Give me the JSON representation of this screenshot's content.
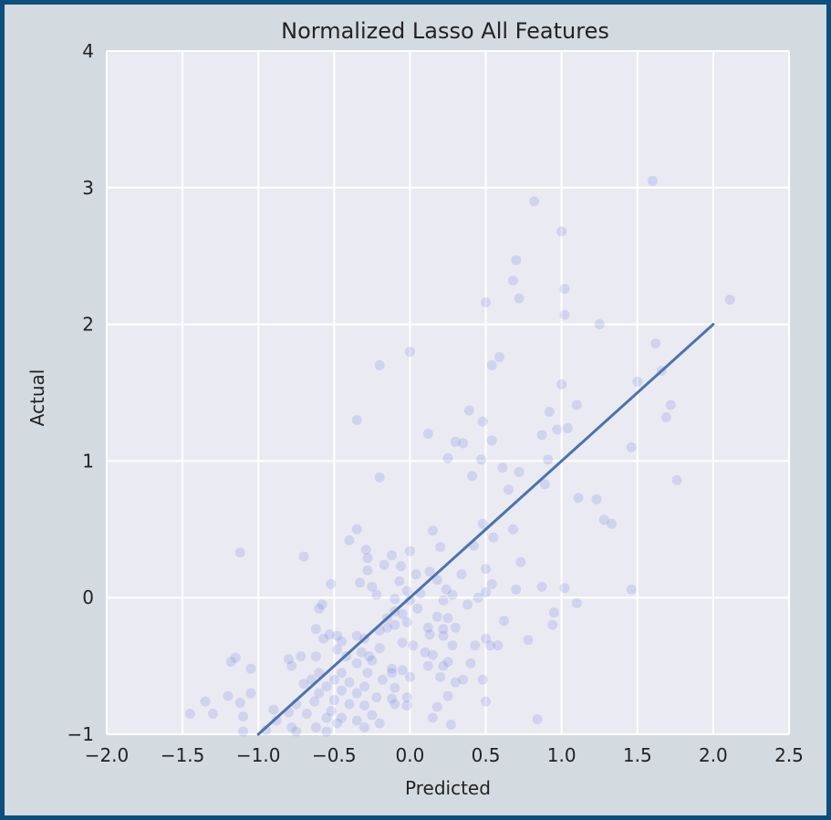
{
  "chart_data": {
    "type": "scatter",
    "title": "Normalized Lasso All Features",
    "xlabel": "Predicted",
    "ylabel": "Actual",
    "xlim": [
      -2.0,
      2.5
    ],
    "ylim": [
      -1,
      4
    ],
    "xticks": [
      "−2.0",
      "−1.5",
      "−1.0",
      "−0.5",
      "0.0",
      "0.5",
      "1.0",
      "1.5",
      "2.0",
      "2.5"
    ],
    "xtick_values": [
      -2.0,
      -1.5,
      -1.0,
      -0.5,
      0.0,
      0.5,
      1.0,
      1.5,
      2.0,
      2.5
    ],
    "yticks": [
      "−1",
      "0",
      "1",
      "2",
      "3",
      "4"
    ],
    "ytick_values": [
      -1,
      0,
      1,
      2,
      3,
      4
    ],
    "grid": true,
    "colors": {
      "background": "#eaeaf2",
      "grid": "#ffffff",
      "points": "#4c5fd6",
      "line": "#4c72b0",
      "frame": "#d4dbe0",
      "border": "#0d4f7c"
    },
    "points": [
      [
        1.6,
        3.05
      ],
      [
        0.82,
        2.9
      ],
      [
        1.0,
        2.68
      ],
      [
        0.7,
        2.47
      ],
      [
        0.68,
        2.32
      ],
      [
        1.02,
        2.26
      ],
      [
        0.72,
        2.19
      ],
      [
        0.5,
        2.16
      ],
      [
        2.11,
        2.18
      ],
      [
        1.02,
        2.07
      ],
      [
        1.25,
        2.0
      ],
      [
        1.62,
        1.86
      ],
      [
        0.0,
        1.8
      ],
      [
        0.59,
        1.76
      ],
      [
        0.54,
        1.7
      ],
      [
        -0.2,
        1.7
      ],
      [
        1.66,
        1.66
      ],
      [
        1.5,
        1.58
      ],
      [
        1.0,
        1.56
      ],
      [
        1.1,
        1.41
      ],
      [
        1.72,
        1.41
      ],
      [
        0.39,
        1.37
      ],
      [
        0.92,
        1.36
      ],
      [
        1.69,
        1.32
      ],
      [
        -0.35,
        1.3
      ],
      [
        0.48,
        1.29
      ],
      [
        0.97,
        1.23
      ],
      [
        1.04,
        1.24
      ],
      [
        0.12,
        1.2
      ],
      [
        0.87,
        1.19
      ],
      [
        0.3,
        1.14
      ],
      [
        0.35,
        1.13
      ],
      [
        0.54,
        1.15
      ],
      [
        1.46,
        1.1
      ],
      [
        0.91,
        1.01
      ],
      [
        0.25,
        1.02
      ],
      [
        0.47,
        1.01
      ],
      [
        0.61,
        0.95
      ],
      [
        0.72,
        0.92
      ],
      [
        0.41,
        0.89
      ],
      [
        -0.2,
        0.88
      ],
      [
        1.76,
        0.86
      ],
      [
        0.89,
        0.83
      ],
      [
        0.65,
        0.79
      ],
      [
        1.11,
        0.73
      ],
      [
        1.23,
        0.72
      ],
      [
        1.28,
        0.57
      ],
      [
        1.33,
        0.54
      ],
      [
        0.48,
        0.54
      ],
      [
        0.68,
        0.5
      ],
      [
        -0.35,
        0.5
      ],
      [
        0.15,
        0.49
      ],
      [
        0.55,
        0.44
      ],
      [
        -0.4,
        0.42
      ],
      [
        0.42,
        0.38
      ],
      [
        0.2,
        0.37
      ],
      [
        -0.29,
        0.35
      ],
      [
        0.0,
        0.34
      ],
      [
        -1.12,
        0.33
      ],
      [
        -0.7,
        0.3
      ],
      [
        -0.28,
        0.29
      ],
      [
        -0.12,
        0.31
      ],
      [
        0.73,
        0.26
      ],
      [
        -0.06,
        0.23
      ],
      [
        -0.17,
        0.24
      ],
      [
        0.5,
        0.21
      ],
      [
        -0.28,
        0.2
      ],
      [
        0.13,
        0.19
      ],
      [
        0.04,
        0.17
      ],
      [
        0.34,
        0.17
      ],
      [
        -0.33,
        0.11
      ],
      [
        -0.07,
        0.12
      ],
      [
        0.18,
        0.13
      ],
      [
        -0.52,
        0.1
      ],
      [
        0.54,
        0.1
      ],
      [
        -0.25,
        0.08
      ],
      [
        0.87,
        0.08
      ],
      [
        1.02,
        0.07
      ],
      [
        1.46,
        0.06
      ],
      [
        0.7,
        0.06
      ],
      [
        0.24,
        0.06
      ],
      [
        -0.02,
        0.05
      ],
      [
        0.07,
        0.03
      ],
      [
        -0.22,
        0.02
      ],
      [
        0.5,
        0.04
      ],
      [
        0.28,
        0.02
      ],
      [
        0.45,
        0.0
      ],
      [
        -0.1,
        -0.01
      ],
      [
        0.0,
        -0.02
      ],
      [
        0.22,
        -0.02
      ],
      [
        0.38,
        -0.05
      ],
      [
        1.1,
        -0.04
      ],
      [
        -0.58,
        -0.05
      ],
      [
        -0.6,
        -0.08
      ],
      [
        0.05,
        -0.08
      ],
      [
        -0.1,
        -0.1
      ],
      [
        0.95,
        -0.11
      ],
      [
        -0.05,
        -0.12
      ],
      [
        0.18,
        -0.14
      ],
      [
        -0.15,
        -0.15
      ],
      [
        0.25,
        -0.15
      ],
      [
        0.62,
        -0.17
      ],
      [
        -0.02,
        -0.18
      ],
      [
        0.94,
        -0.2
      ],
      [
        -0.1,
        -0.2
      ],
      [
        -0.15,
        -0.22
      ],
      [
        0.3,
        -0.22
      ],
      [
        0.22,
        -0.23
      ],
      [
        0.12,
        -0.22
      ],
      [
        -0.62,
        -0.23
      ],
      [
        -0.2,
        -0.24
      ],
      [
        -0.53,
        -0.27
      ],
      [
        -0.35,
        -0.28
      ],
      [
        -0.48,
        -0.28
      ],
      [
        0.13,
        -0.27
      ],
      [
        0.22,
        -0.28
      ],
      [
        -0.3,
        -0.3
      ],
      [
        -0.57,
        -0.3
      ],
      [
        -0.45,
        -0.32
      ],
      [
        0.5,
        -0.3
      ],
      [
        -0.05,
        -0.33
      ],
      [
        0.78,
        -0.31
      ],
      [
        0.02,
        -0.35
      ],
      [
        0.28,
        -0.35
      ],
      [
        0.43,
        -0.35
      ],
      [
        0.53,
        -0.35
      ],
      [
        0.58,
        -0.35
      ],
      [
        -0.2,
        -0.37
      ],
      [
        -0.48,
        -0.38
      ],
      [
        -0.32,
        -0.4
      ],
      [
        0.1,
        -0.4
      ],
      [
        0.15,
        -0.42
      ],
      [
        -0.27,
        -0.43
      ],
      [
        -0.42,
        -0.43
      ],
      [
        -0.62,
        -0.43
      ],
      [
        -0.72,
        -0.43
      ],
      [
        -0.8,
        -0.45
      ],
      [
        -0.25,
        -0.46
      ],
      [
        -1.15,
        -0.44
      ],
      [
        -1.18,
        -0.47
      ],
      [
        0.25,
        -0.47
      ],
      [
        -0.35,
        -0.48
      ],
      [
        0.12,
        -0.5
      ],
      [
        0.22,
        -0.5
      ],
      [
        0.4,
        -0.48
      ],
      [
        -0.78,
        -0.5
      ],
      [
        -0.05,
        -0.53
      ],
      [
        -0.12,
        -0.52
      ],
      [
        -1.05,
        -0.52
      ],
      [
        -0.45,
        -0.55
      ],
      [
        -0.6,
        -0.55
      ],
      [
        -0.12,
        -0.55
      ],
      [
        -0.28,
        -0.55
      ],
      [
        0.0,
        -0.58
      ],
      [
        0.2,
        -0.58
      ],
      [
        0.35,
        -0.6
      ],
      [
        -0.65,
        -0.6
      ],
      [
        -0.5,
        -0.6
      ],
      [
        -0.18,
        -0.6
      ],
      [
        0.48,
        -0.6
      ],
      [
        -0.4,
        -0.62
      ],
      [
        0.3,
        -0.62
      ],
      [
        -0.7,
        -0.63
      ],
      [
        -0.55,
        -0.65
      ],
      [
        -0.3,
        -0.65
      ],
      [
        -0.1,
        -0.66
      ],
      [
        -0.45,
        -0.68
      ],
      [
        -1.05,
        -0.7
      ],
      [
        -0.6,
        -0.7
      ],
      [
        -0.35,
        -0.7
      ],
      [
        0.25,
        -0.72
      ],
      [
        -1.2,
        -0.72
      ],
      [
        -0.02,
        -0.73
      ],
      [
        -0.22,
        -0.73
      ],
      [
        -0.12,
        -0.74
      ],
      [
        -0.5,
        -0.75
      ],
      [
        -0.63,
        -0.76
      ],
      [
        0.5,
        -0.76
      ],
      [
        -1.12,
        -0.77
      ],
      [
        -0.75,
        -0.78
      ],
      [
        -0.4,
        -0.78
      ],
      [
        -0.3,
        -0.79
      ],
      [
        -0.1,
        -0.78
      ],
      [
        -0.02,
        -0.79
      ],
      [
        0.18,
        -0.8
      ],
      [
        -1.35,
        -0.76
      ],
      [
        -0.9,
        -0.82
      ],
      [
        -0.52,
        -0.83
      ],
      [
        -0.8,
        -0.84
      ],
      [
        -0.25,
        -0.86
      ],
      [
        -1.45,
        -0.85
      ],
      [
        -1.3,
        -0.85
      ],
      [
        -0.68,
        -0.85
      ],
      [
        -1.1,
        -0.87
      ],
      [
        -0.45,
        -0.88
      ],
      [
        -0.55,
        -0.88
      ],
      [
        0.15,
        -0.88
      ],
      [
        -0.35,
        -0.9
      ],
      [
        -0.88,
        -0.9
      ],
      [
        -0.48,
        -0.92
      ],
      [
        -0.2,
        -0.92
      ],
      [
        0.84,
        -0.89
      ],
      [
        -0.78,
        -0.95
      ],
      [
        -0.62,
        -0.95
      ],
      [
        -0.3,
        -0.95
      ],
      [
        0.27,
        -0.93
      ],
      [
        -1.1,
        -0.98
      ],
      [
        -0.95,
        -0.97
      ],
      [
        -0.75,
        -0.98
      ],
      [
        -0.55,
        -0.98
      ]
    ],
    "fit_line": [
      [
        -1.0,
        -1.0
      ],
      [
        2.0,
        2.0
      ]
    ]
  }
}
